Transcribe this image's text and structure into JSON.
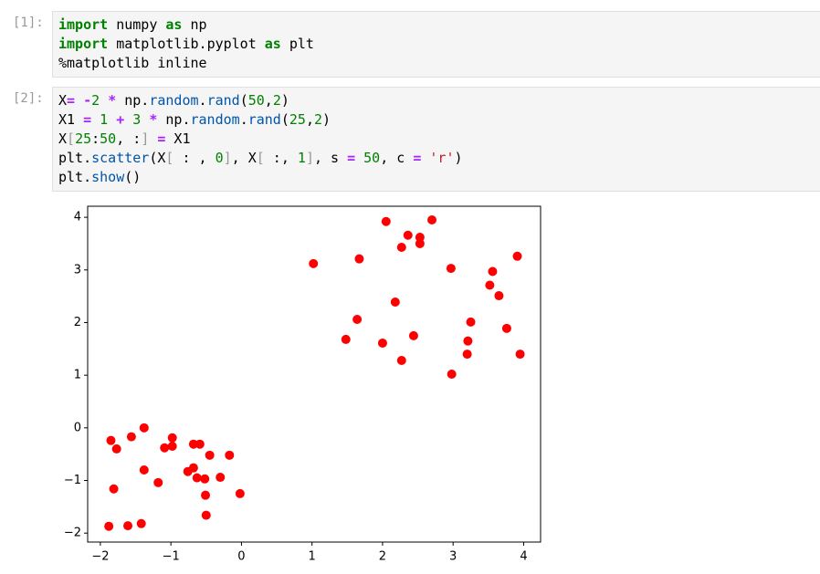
{
  "cells": [
    {
      "prompt": "[1]:",
      "lines": [
        "import numpy as np",
        "import matplotlib.pyplot as plt",
        "%matplotlib inline"
      ]
    },
    {
      "prompt": "[2]:",
      "lines": [
        "X= -2 * np.random.rand(50,2)",
        "X1 = 1 + 3 * np.random.rand(25,2)",
        "X[25:50, :] = X1",
        "plt.scatter(X[ : , 0], X[ :, 1], s = 50, c = 'r')",
        "plt.show()"
      ]
    }
  ],
  "chart_data": {
    "type": "scatter",
    "color": "red",
    "x": [
      1.02,
      2.05,
      2.7,
      2.36,
      2.53,
      2.53,
      2.27,
      1.67,
      2.97,
      3.56,
      3.91,
      3.52,
      3.65,
      2.18,
      1.64,
      3.25,
      3.76,
      2.44,
      1.48,
      2.0,
      3.21,
      3.2,
      3.95,
      2.27,
      2.98,
      -1.38,
      -1.85,
      -1.56,
      -1.77,
      -0.98,
      -0.98,
      -1.09,
      -0.68,
      -0.59,
      -0.45,
      -0.17,
      -1.38,
      -0.68,
      -0.76,
      -0.63,
      -0.52,
      -0.3,
      -1.18,
      -1.81,
      -0.51,
      -0.02,
      -0.5,
      -1.88,
      -1.61,
      -1.42
    ],
    "values": [
      3.12,
      3.92,
      3.95,
      3.66,
      3.62,
      3.5,
      3.43,
      3.21,
      3.03,
      2.97,
      3.26,
      2.71,
      2.51,
      2.39,
      2.06,
      2.01,
      1.89,
      1.75,
      1.68,
      1.61,
      1.65,
      1.4,
      1.4,
      1.28,
      1.02,
      0.0,
      -0.24,
      -0.17,
      -0.4,
      -0.19,
      -0.35,
      -0.38,
      -0.31,
      -0.31,
      -0.52,
      -0.52,
      -0.8,
      -0.76,
      -0.83,
      -0.95,
      -0.97,
      -0.94,
      -1.04,
      -1.16,
      -1.28,
      -1.25,
      -1.66,
      -1.87,
      -1.86,
      -1.82
    ],
    "xlim": [
      -2.18,
      4.24
    ],
    "ylim": [
      -2.17,
      4.21
    ],
    "xticks": [
      {
        "value": -2,
        "label": "−2"
      },
      {
        "value": -1,
        "label": "−1"
      },
      0,
      1,
      2,
      3,
      4
    ],
    "yticks": [
      {
        "value": -2,
        "label": "−2"
      },
      {
        "value": -1,
        "label": "−1"
      },
      0,
      1,
      2,
      3,
      4
    ]
  }
}
